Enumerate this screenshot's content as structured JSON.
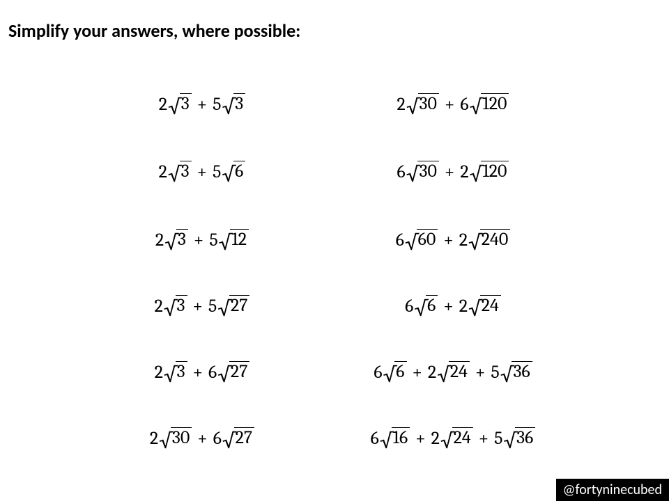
{
  "heading": "Simplify your answers, where possible:",
  "footer": "@fortyninecubed",
  "symbols": {
    "plus": "+",
    "sqrt": "√"
  },
  "problems": {
    "left": [
      {
        "terms": [
          {
            "coef": "2",
            "rad": "3"
          },
          {
            "coef": "5",
            "rad": "3"
          }
        ]
      },
      {
        "terms": [
          {
            "coef": "2",
            "rad": "3"
          },
          {
            "coef": "5",
            "rad": "6"
          }
        ]
      },
      {
        "terms": [
          {
            "coef": "2",
            "rad": "3"
          },
          {
            "coef": "5",
            "rad": "12"
          }
        ]
      },
      {
        "terms": [
          {
            "coef": "2",
            "rad": "3"
          },
          {
            "coef": "5",
            "rad": "27"
          }
        ]
      },
      {
        "terms": [
          {
            "coef": "2",
            "rad": "3"
          },
          {
            "coef": "6",
            "rad": "27"
          }
        ]
      },
      {
        "terms": [
          {
            "coef": "2",
            "rad": "30"
          },
          {
            "coef": "6",
            "rad": "27"
          }
        ]
      }
    ],
    "right": [
      {
        "terms": [
          {
            "coef": "2",
            "rad": "30"
          },
          {
            "coef": "6",
            "rad": "120"
          }
        ]
      },
      {
        "terms": [
          {
            "coef": "6",
            "rad": "30"
          },
          {
            "coef": "2",
            "rad": "120"
          }
        ]
      },
      {
        "terms": [
          {
            "coef": "6",
            "rad": "60"
          },
          {
            "coef": "2",
            "rad": "240"
          }
        ]
      },
      {
        "terms": [
          {
            "coef": "6",
            "rad": "6"
          },
          {
            "coef": "2",
            "rad": "24"
          }
        ]
      },
      {
        "terms": [
          {
            "coef": "6",
            "rad": "6"
          },
          {
            "coef": "2",
            "rad": "24"
          },
          {
            "coef": "5",
            "rad": "36"
          }
        ]
      },
      {
        "terms": [
          {
            "coef": "6",
            "rad": "16"
          },
          {
            "coef": "2",
            "rad": "24"
          },
          {
            "coef": "5",
            "rad": "36"
          }
        ]
      }
    ]
  }
}
